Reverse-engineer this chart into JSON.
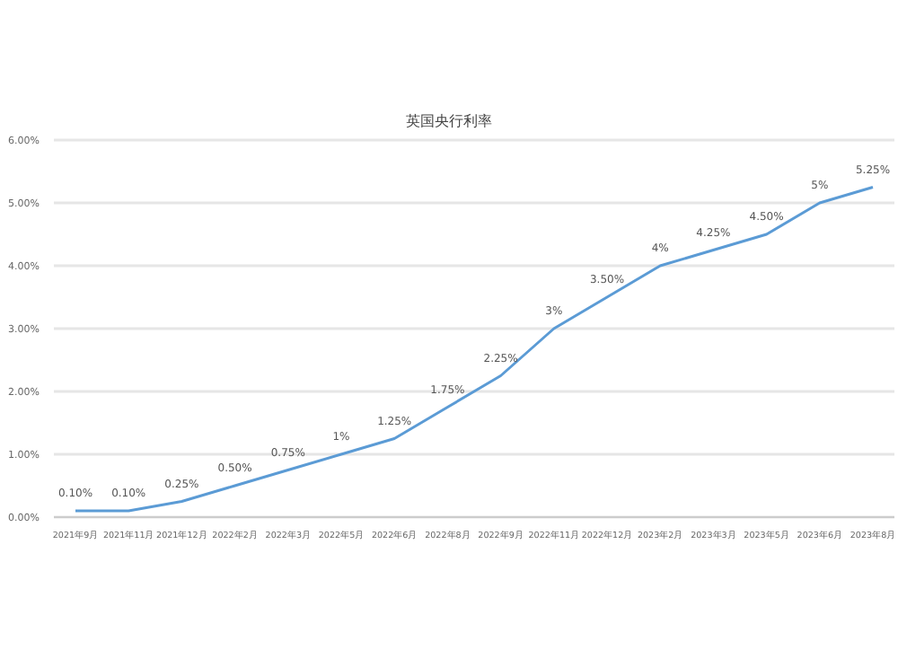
{
  "chart_data": {
    "type": "line",
    "title": "英国央行利率",
    "categories": [
      "2021年9月",
      "2021年11月",
      "2021年12月",
      "2022年2月",
      "2022年3月",
      "2022年5月",
      "2022年6月",
      "2022年8月",
      "2022年9月",
      "2022年11月",
      "2022年12月",
      "2023年2月",
      "2023年3月",
      "2023年5月",
      "2023年6月",
      "2023年8月"
    ],
    "values": [
      0.1,
      0.1,
      0.25,
      0.5,
      0.75,
      1,
      1.25,
      1.75,
      2.25,
      3,
      3.5,
      4,
      4.25,
      4.5,
      5,
      5.25
    ],
    "value_labels": [
      "0.10%",
      "0.10%",
      "0.25%",
      "0.50%",
      "0.75%",
      "1%",
      "1.25%",
      "1.75%",
      "2.25%",
      "3%",
      "3.50%",
      "4%",
      "4.25%",
      "4.50%",
      "5%",
      "5.25%"
    ],
    "color": "#5b9bd5",
    "ylim": [
      0,
      6
    ],
    "yticks": [
      {
        "value": 0,
        "label": "0.00%"
      },
      {
        "value": 1,
        "label": "1.00%"
      },
      {
        "value": 2,
        "label": "2.00%"
      },
      {
        "value": 3,
        "label": "3.00%"
      },
      {
        "value": 4,
        "label": "4.00%"
      },
      {
        "value": 5,
        "label": "5.00%"
      },
      {
        "value": 6,
        "label": "6.00%"
      }
    ],
    "grid": "y",
    "marker": "none",
    "line_style": "solid"
  }
}
